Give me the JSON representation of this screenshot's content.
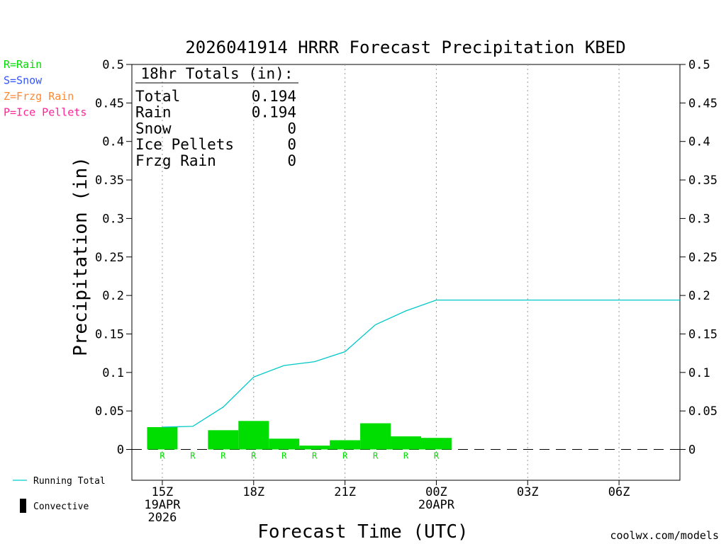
{
  "chart_data": {
    "type": "bar",
    "title": "2026041914 HRRR Forecast Precipitation KBED",
    "ylabel": "Precipitation (in)",
    "xlabel": "Forecast Time (UTC)",
    "ylim": [
      -0.04,
      0.5
    ],
    "yticks": [
      "0",
      "0.05",
      "0.1",
      "0.15",
      "0.2",
      "0.25",
      "0.3",
      "0.35",
      "0.4",
      "0.45",
      "0.5"
    ],
    "ytick_values": [
      0,
      0.05,
      0.1,
      0.15,
      0.2,
      0.25,
      0.3,
      0.35,
      0.4,
      0.45,
      0.5
    ],
    "xlim_hours": [
      -1,
      17
    ],
    "xticks": [
      {
        "hour": 0,
        "lines": [
          "15Z",
          "19APR",
          "2026"
        ]
      },
      {
        "hour": 3,
        "lines": [
          "18Z"
        ]
      },
      {
        "hour": 6,
        "lines": [
          "21Z"
        ]
      },
      {
        "hour": 9,
        "lines": [
          "00Z",
          "20APR"
        ]
      },
      {
        "hour": 12,
        "lines": [
          "03Z"
        ]
      },
      {
        "hour": 15,
        "lines": [
          "06Z"
        ]
      }
    ],
    "bar_hours": [
      0,
      1,
      2,
      3,
      4,
      5,
      6,
      7,
      8,
      9
    ],
    "hourly_values": [
      0.029,
      0.0,
      0.025,
      0.037,
      0.014,
      0.005,
      0.012,
      0.034,
      0.017,
      0.015
    ],
    "precip_type_markers": [
      "R",
      "R",
      "R",
      "R",
      "R",
      "R",
      "R",
      "R",
      "R",
      "R"
    ],
    "running_total": {
      "name": "Running Total",
      "hours": [
        0,
        1,
        2,
        3,
        4,
        5,
        6,
        7,
        8,
        9,
        10,
        11,
        12,
        13,
        14,
        15,
        16,
        17
      ],
      "values": [
        0.029,
        0.03,
        0.055,
        0.094,
        0.109,
        0.114,
        0.127,
        0.162,
        0.18,
        0.194,
        0.194,
        0.194,
        0.194,
        0.194,
        0.194,
        0.194,
        0.194,
        0.194
      ]
    },
    "totals_box": {
      "heading": "18hr Totals (in):",
      "rows": [
        {
          "label": "Total",
          "value": "0.194"
        },
        {
          "label": "Rain",
          "value": "0.194"
        },
        {
          "label": "Snow",
          "value": "0"
        },
        {
          "label": "Ice Pellets",
          "value": "0"
        },
        {
          "label": "Frzg Rain",
          "value": "0"
        }
      ]
    },
    "type_legend": [
      {
        "text": "R=Rain",
        "color": "#00dd00"
      },
      {
        "text": "S=Snow",
        "color": "#3355ff"
      },
      {
        "text": "Z=Frzg Rain",
        "color": "#ff8833"
      },
      {
        "text": "P=Ice Pellets",
        "color": "#ff2299"
      }
    ],
    "bottom_legend": [
      {
        "text": "Running Total",
        "kind": "line",
        "color": "#00cccc"
      },
      {
        "text": "Convective",
        "kind": "bar",
        "color": "#000000"
      }
    ],
    "credit": "coolwx.com/models",
    "colors": {
      "rain_bar": "#00dd00",
      "running_total": "#00c8c8",
      "credit": "#cc0000",
      "grid": "#999999"
    }
  }
}
